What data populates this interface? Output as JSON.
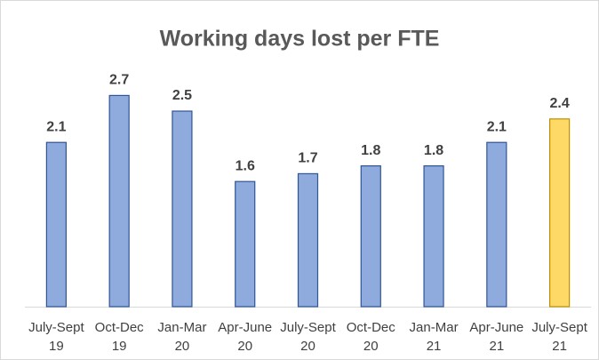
{
  "chart_data": {
    "type": "bar",
    "title": "Working days lost per FTE",
    "categories": [
      [
        "July-Sept",
        "19"
      ],
      [
        "Oct-Dec",
        "19"
      ],
      [
        "Jan-Mar",
        "20"
      ],
      [
        "Apr-June",
        "20"
      ],
      [
        "July-Sept",
        "20"
      ],
      [
        "Oct-Dec",
        "20"
      ],
      [
        "Jan-Mar",
        "21"
      ],
      [
        "Apr-June",
        "21"
      ],
      [
        "July-Sept",
        "21"
      ]
    ],
    "values": [
      2.1,
      2.7,
      2.5,
      1.6,
      1.7,
      1.8,
      1.8,
      2.1,
      2.4
    ],
    "colors": [
      "#8faadc",
      "#8faadc",
      "#8faadc",
      "#8faadc",
      "#8faadc",
      "#8faadc",
      "#8faadc",
      "#8faadc",
      "#ffd966"
    ],
    "edge_colors": [
      "#2f5597",
      "#2f5597",
      "#2f5597",
      "#2f5597",
      "#2f5597",
      "#2f5597",
      "#2f5597",
      "#2f5597",
      "#bf9000"
    ],
    "ylim": [
      0,
      3
    ]
  }
}
